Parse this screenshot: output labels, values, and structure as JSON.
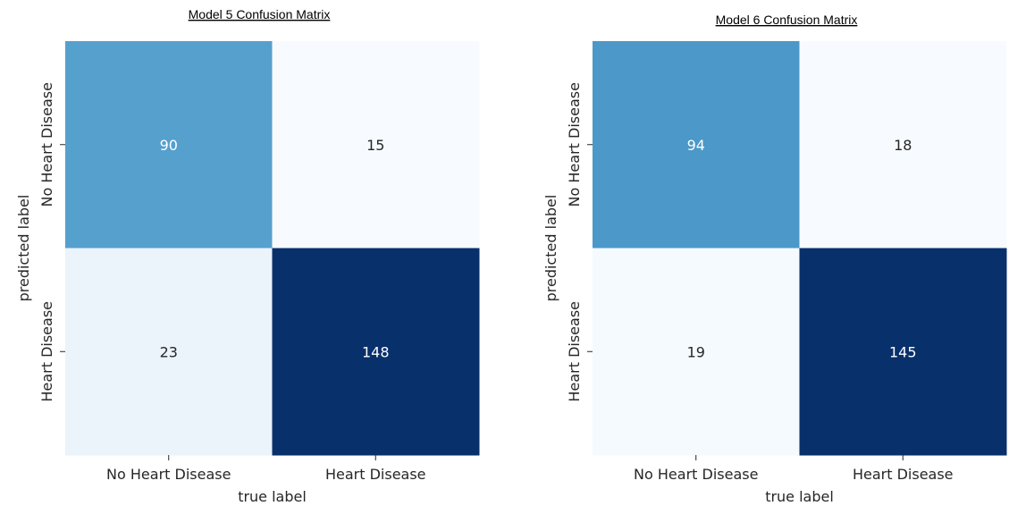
{
  "chart_data": [
    {
      "type": "heatmap",
      "title": "Model 5 Confusion Matrix",
      "xlabel": "true label",
      "ylabel": "predicted label",
      "x_categories": [
        "No Heart Disease",
        "Heart Disease"
      ],
      "y_categories": [
        "No Heart Disease",
        "Heart Disease"
      ],
      "values": [
        [
          90,
          15
        ],
        [
          23,
          148
        ]
      ],
      "colormap": "Blues",
      "colors": {
        "low": "#f7fbff",
        "high": "#08306b",
        "text_light": "#ffffff",
        "text_dark": "#262626"
      }
    },
    {
      "type": "heatmap",
      "title": "Model 6 Confusion Matrix",
      "xlabel": "true label",
      "ylabel": "predicted label",
      "x_categories": [
        "No Heart Disease",
        "Heart Disease"
      ],
      "y_categories": [
        "No Heart Disease",
        "Heart Disease"
      ],
      "values": [
        [
          94,
          18
        ],
        [
          19,
          145
        ]
      ],
      "colormap": "Blues",
      "colors": {
        "low": "#f7fbff",
        "high": "#08306b",
        "text_light": "#ffffff",
        "text_dark": "#262626"
      }
    }
  ]
}
